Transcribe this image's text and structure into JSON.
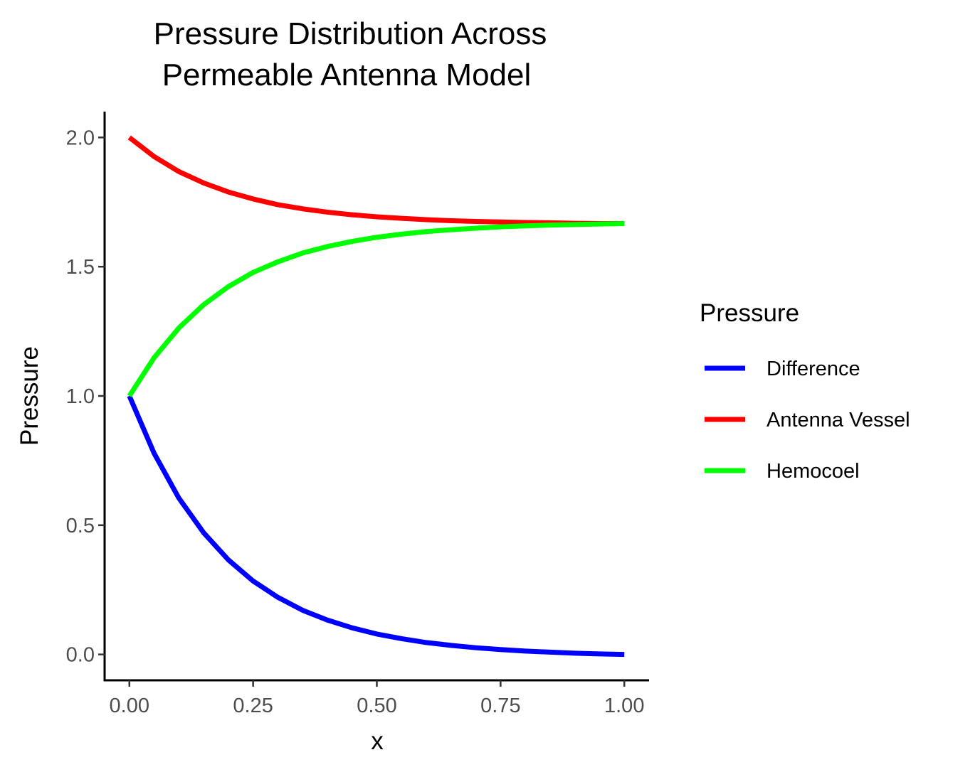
{
  "chart_data": {
    "type": "line",
    "title_lines": [
      "Pressure Distribution Across",
      "Permeable Antenna Model"
    ],
    "xlabel": "x",
    "ylabel": "Pressure",
    "xlim": [
      -0.05,
      1.05
    ],
    "ylim": [
      -0.1,
      2.1
    ],
    "x_ticks": [
      0.0,
      0.25,
      0.5,
      0.75,
      1.0
    ],
    "x_tick_labels": [
      "0.00",
      "0.25",
      "0.50",
      "0.75",
      "1.00"
    ],
    "y_ticks": [
      0.0,
      0.5,
      1.0,
      1.5,
      2.0
    ],
    "y_tick_labels": [
      "0.0",
      "0.5",
      "1.0",
      "1.5",
      "2.0"
    ],
    "grid": false,
    "legend": {
      "title": "Pressure",
      "position": "right"
    },
    "x": [
      0.0,
      0.05,
      0.1,
      0.15,
      0.2,
      0.25,
      0.3,
      0.35,
      0.4,
      0.45,
      0.5,
      0.55,
      0.6,
      0.65,
      0.7,
      0.75,
      0.8,
      0.85,
      0.9,
      0.95,
      1.0
    ],
    "series": [
      {
        "name": "Difference",
        "color": "#0000ff",
        "values": [
          1.0,
          0.778,
          0.605,
          0.471,
          0.366,
          0.284,
          0.221,
          0.171,
          0.133,
          0.103,
          0.079,
          0.061,
          0.046,
          0.035,
          0.026,
          0.019,
          0.013,
          0.009,
          0.005,
          0.002,
          0.0
        ]
      },
      {
        "name": "Antenna Vessel",
        "color": "#ff0000",
        "values": [
          2.0,
          1.926,
          1.868,
          1.824,
          1.789,
          1.762,
          1.74,
          1.724,
          1.711,
          1.701,
          1.693,
          1.687,
          1.682,
          1.678,
          1.675,
          1.673,
          1.671,
          1.67,
          1.668,
          1.667,
          1.667
        ]
      },
      {
        "name": "Hemocoel",
        "color": "#00ff00",
        "values": [
          1.0,
          1.148,
          1.263,
          1.353,
          1.423,
          1.478,
          1.519,
          1.553,
          1.578,
          1.598,
          1.614,
          1.626,
          1.636,
          1.643,
          1.649,
          1.654,
          1.658,
          1.661,
          1.663,
          1.665,
          1.667
        ]
      }
    ]
  }
}
